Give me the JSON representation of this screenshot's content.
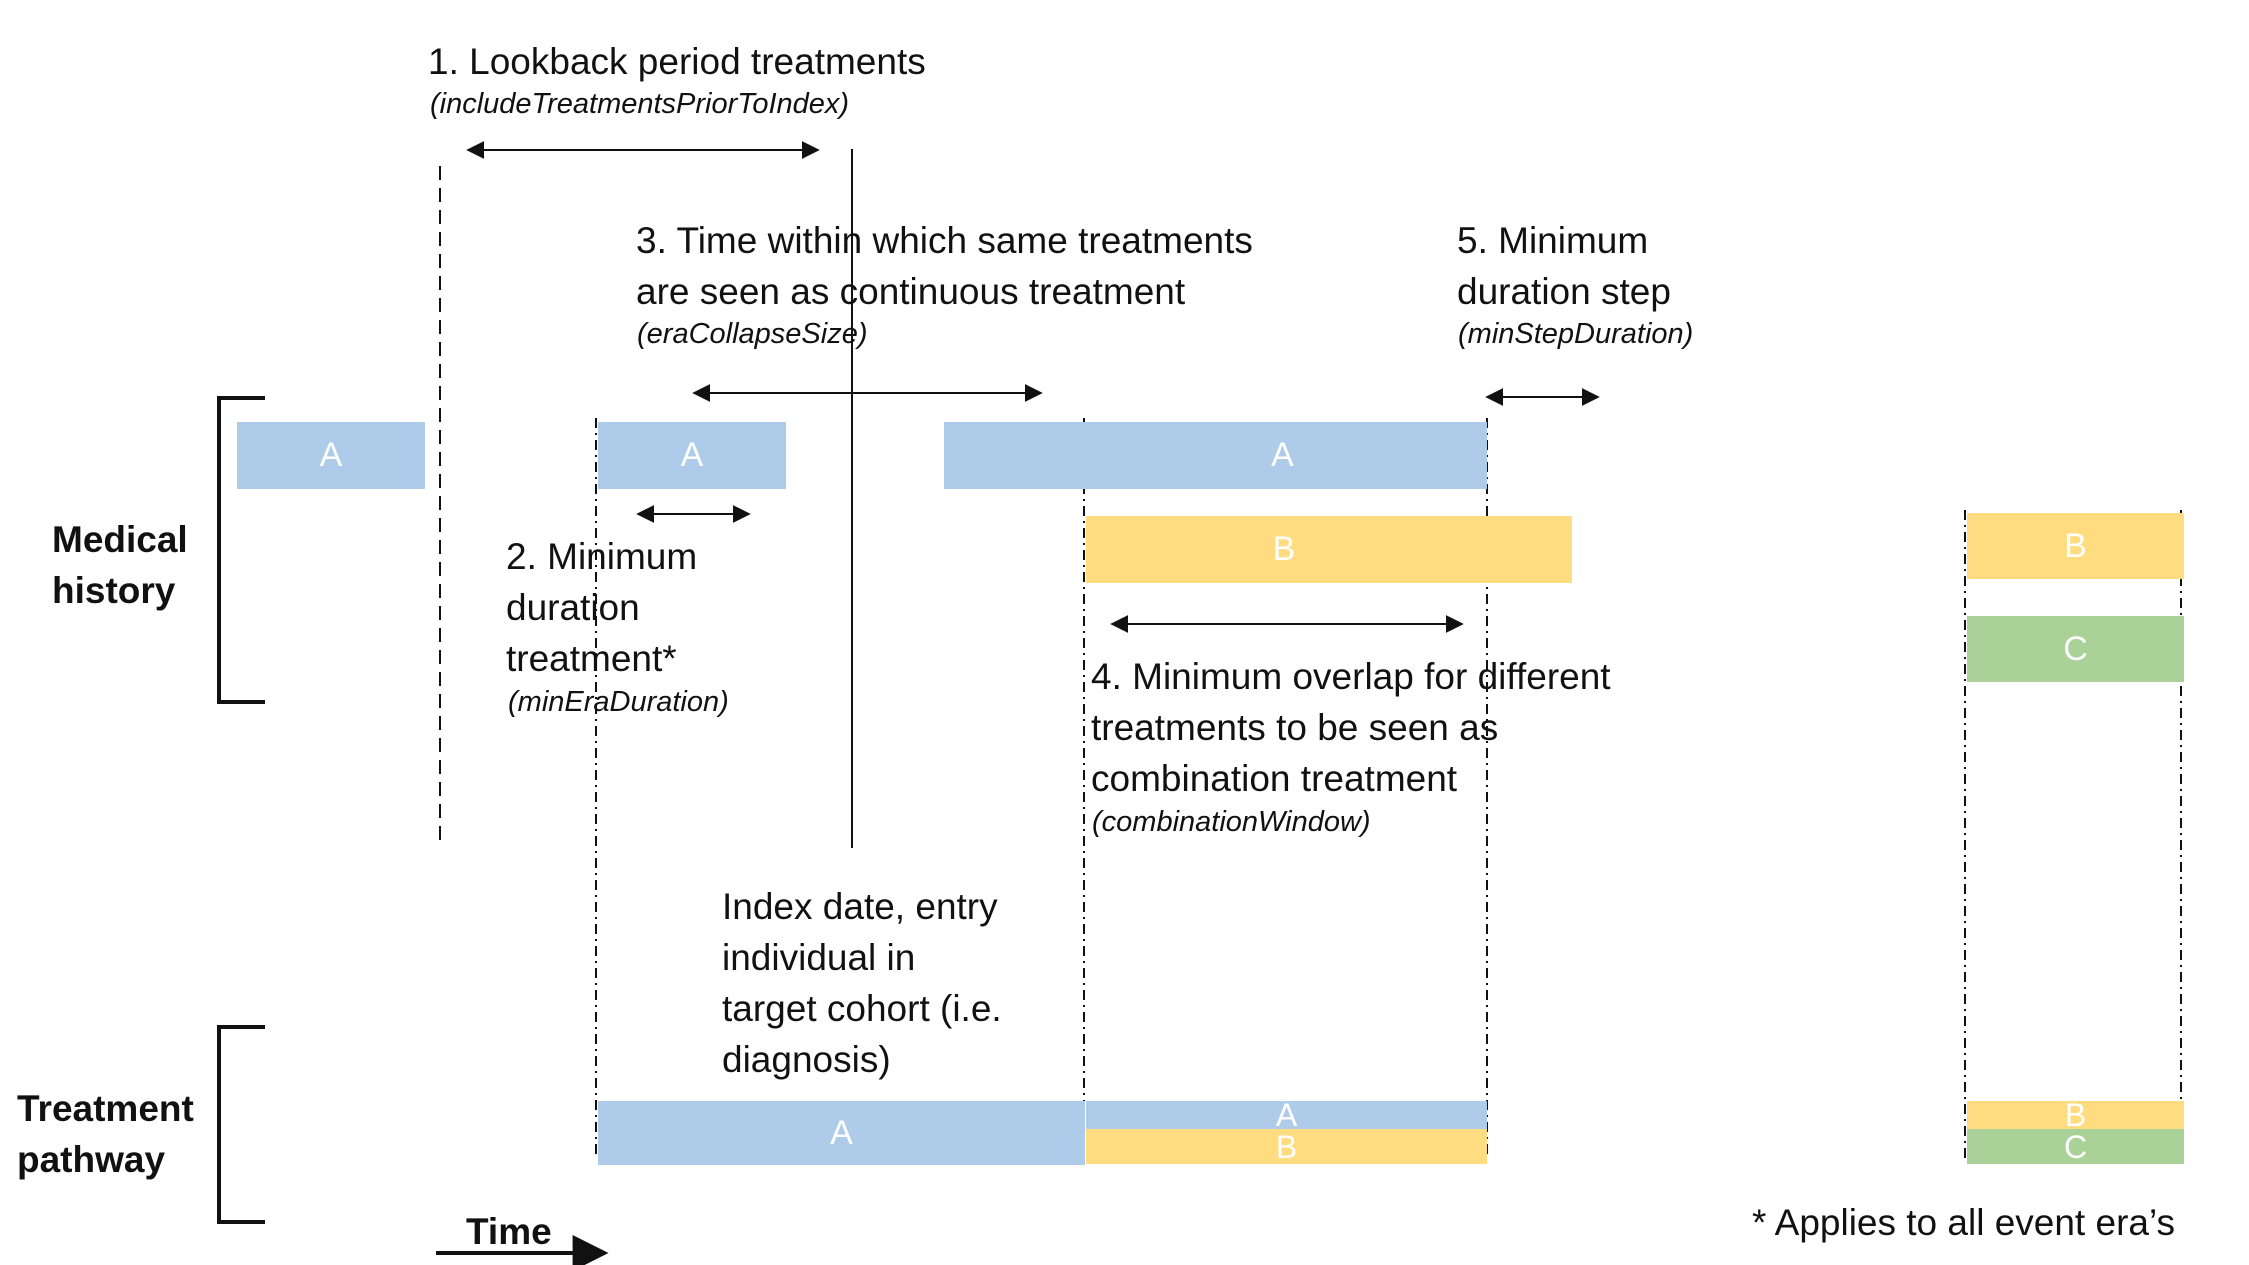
{
  "colors": {
    "blue": "#aecce9",
    "yellow": "#ffdc7f",
    "green": "#aad198",
    "ink": "#111111"
  },
  "annotations": {
    "lookback": {
      "title": "1. Lookback period treatments",
      "param": "(includeTreatmentsPriorToIndex)"
    },
    "min_duration": {
      "title": "2. Minimum\nduration\ntreatment*",
      "param": "(minEraDuration)"
    },
    "collapse": {
      "title": "3. Time within which same treatments\nare seen as continuous treatment",
      "param": "(eraCollapseSize)"
    },
    "min_step": {
      "title": "5. Minimum\nduration step",
      "param": "(minStepDuration)"
    },
    "overlap": {
      "title": "4. Minimum overlap for different\ntreatments to be seen as\ncombination treatment",
      "param": "(combinationWindow)"
    },
    "index_date": "Index date, entry\nindividual in\ntarget cohort (i.e.\ndiagnosis)"
  },
  "row_labels": {
    "medical_history": "Medical\nhistory",
    "treatment_pathway": "Treatment\npathway"
  },
  "time_label": "Time",
  "footnote": "* Applies to all event era’s",
  "bars": {
    "history_a1": "A",
    "history_a2": "A",
    "history_a3": "A",
    "history_b": "B",
    "history_right_b": "B",
    "history_right_c": "C",
    "pathway_a": "A",
    "pathway_combo_a": "A",
    "pathway_combo_b": "B",
    "pathway_right_b": "B",
    "pathway_right_c": "C"
  }
}
